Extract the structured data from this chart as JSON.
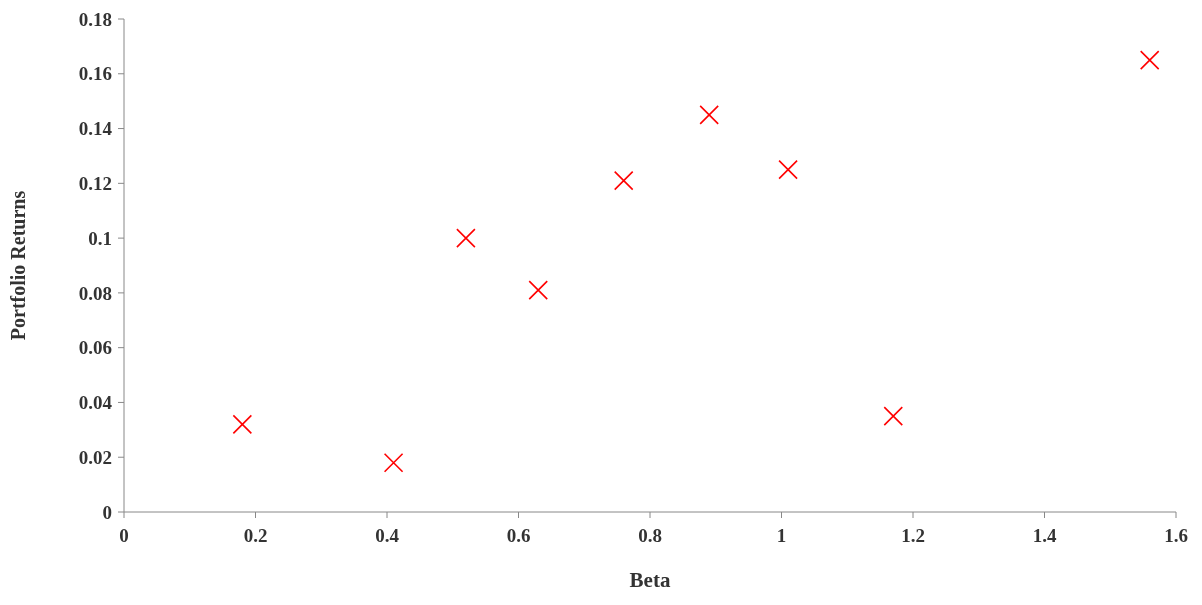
{
  "chart_data": {
    "type": "scatter",
    "xlabel": "Beta",
    "ylabel": "Portfolio Returns",
    "x": [
      0.18,
      0.41,
      0.52,
      0.63,
      0.76,
      0.89,
      1.01,
      1.17,
      1.56
    ],
    "series": [
      {
        "color": "#ff0000",
        "values": [
          0.032,
          0.018,
          0.1,
          0.081,
          0.121,
          0.145,
          0.125,
          0.035,
          0.165
        ]
      }
    ],
    "xlim": [
      0,
      1.6
    ],
    "xticks": [
      0,
      0.2,
      0.4,
      0.6,
      0.8,
      1,
      1.2,
      1.4,
      1.6
    ],
    "ylim": [
      0,
      0.18
    ],
    "yticks": [
      0,
      0.02,
      0.04,
      0.06,
      0.08,
      0.1,
      0.12,
      0.14,
      0.16,
      0.18
    ],
    "marker": "cross",
    "grid": false
  }
}
